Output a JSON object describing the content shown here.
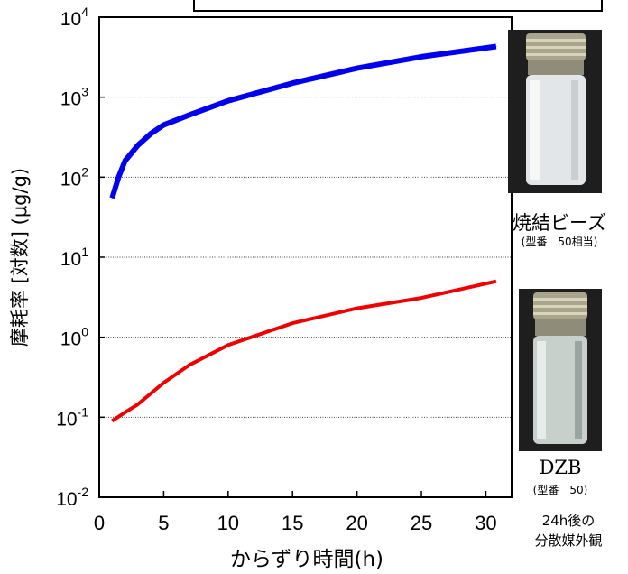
{
  "chart_data": {
    "type": "line",
    "xlabel": "からずり時間(h)",
    "ylabel": "摩耗率 [対数] (μg/g)",
    "xlim": [
      0,
      32
    ],
    "ylim_log10": [
      -2,
      4
    ],
    "y_scale": "log",
    "x_ticks": [
      "0",
      "5",
      "10",
      "15",
      "20",
      "25",
      "30"
    ],
    "x_tick_values": [
      0,
      5,
      10,
      15,
      20,
      25,
      30
    ],
    "y_ticks": [
      {
        "base": "10",
        "exp": "-2"
      },
      {
        "base": "10",
        "exp": "-1"
      },
      {
        "base": "10",
        "exp": "0"
      },
      {
        "base": "10",
        "exp": "1"
      },
      {
        "base": "10",
        "exp": "2"
      },
      {
        "base": "10",
        "exp": "3"
      },
      {
        "base": "10",
        "exp": "4"
      }
    ],
    "grid": "horizontal dotted",
    "series": [
      {
        "color": "#0000ee",
        "x": [
          1,
          1.5,
          2,
          3,
          4,
          5,
          7,
          10,
          15,
          20,
          25,
          30.8
        ],
        "y": [
          55,
          100,
          160,
          250,
          350,
          450,
          600,
          900,
          1500,
          2300,
          3200,
          4300
        ]
      },
      {
        "color": "#ee0000",
        "x": [
          1,
          2,
          3,
          5,
          7,
          10,
          15,
          20,
          25,
          30.8
        ],
        "y": [
          0.09,
          0.115,
          0.145,
          0.27,
          0.45,
          0.8,
          1.5,
          2.3,
          3.1,
          5.0
        ]
      }
    ]
  },
  "photos": [
    {
      "label": "焼結ビーズ",
      "sublabel": "(型番　50相当)",
      "liquid": "cloudy"
    },
    {
      "label": "DZB",
      "sublabel": "(型番　50)",
      "liquid": "clear"
    }
  ],
  "footnote": [
    "24h後の",
    "分散媒外観"
  ]
}
